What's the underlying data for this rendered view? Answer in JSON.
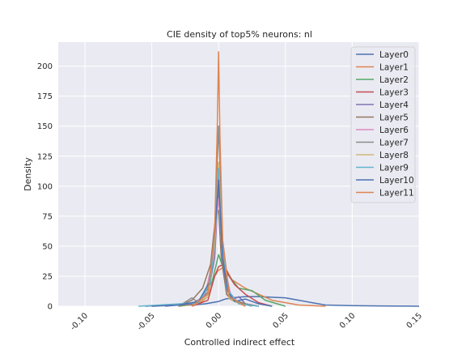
{
  "chart_data": {
    "type": "line",
    "title": "CIE density of top5% neurons: nl",
    "xlabel": "Controlled indirect effect",
    "ylabel": "Density",
    "xlim": [
      -0.12,
      0.15
    ],
    "ylim": [
      0,
      220
    ],
    "xticks": [
      -0.1,
      -0.05,
      0.0,
      0.05,
      0.1,
      0.15
    ],
    "xtick_labels": [
      "-0.10",
      "-0.05",
      "0.00",
      "0.05",
      "0.10",
      "0.15"
    ],
    "yticks": [
      0,
      25,
      50,
      75,
      100,
      125,
      150,
      175,
      200
    ],
    "ytick_labels": [
      "0",
      "25",
      "50",
      "75",
      "100",
      "125",
      "150",
      "175",
      "200"
    ],
    "grid": true,
    "legend_position": "top-right",
    "series": [
      {
        "name": "Layer0",
        "color": "#4c72b0",
        "x": [
          -0.055,
          -0.04,
          -0.02,
          -0.01,
          0.0,
          0.005,
          0.01,
          0.02,
          0.03,
          0.05,
          0.07,
          0.08,
          0.1,
          0.12,
          0.15
        ],
        "y": [
          0,
          1,
          1,
          2,
          4,
          6,
          7,
          8,
          8,
          7,
          3,
          1,
          0.5,
          0.3,
          0
        ]
      },
      {
        "name": "Layer1",
        "color": "#dd8452",
        "x": [
          -0.03,
          -0.015,
          -0.008,
          -0.003,
          0.0,
          0.003,
          0.006,
          0.01,
          0.02,
          0.03,
          0.04,
          0.06,
          0.08
        ],
        "y": [
          0,
          2,
          8,
          25,
          30,
          32,
          30,
          22,
          15,
          10,
          5,
          1,
          0
        ]
      },
      {
        "name": "Layer2",
        "color": "#55a868",
        "x": [
          -0.03,
          -0.015,
          -0.005,
          0.0,
          0.004,
          0.008,
          0.015,
          0.025,
          0.035,
          0.05
        ],
        "y": [
          0,
          3,
          20,
          43,
          30,
          25,
          15,
          13,
          5,
          0
        ]
      },
      {
        "name": "Layer3",
        "color": "#c44e52",
        "x": [
          -0.02,
          -0.008,
          -0.003,
          0.0,
          0.004,
          0.008,
          0.012,
          0.02,
          0.03,
          0.04
        ],
        "y": [
          0,
          5,
          25,
          33,
          35,
          25,
          18,
          10,
          3,
          0
        ]
      },
      {
        "name": "Layer4",
        "color": "#8172b3",
        "x": [
          -0.04,
          -0.02,
          -0.008,
          -0.003,
          0.0,
          0.003,
          0.006,
          0.01,
          0.015,
          0.02,
          0.03
        ],
        "y": [
          0,
          2,
          10,
          40,
          100,
          40,
          10,
          5,
          8,
          2,
          0
        ]
      },
      {
        "name": "Layer5",
        "color": "#937860",
        "x": [
          -0.03,
          -0.02,
          -0.012,
          -0.006,
          -0.002,
          0.0,
          0.002,
          0.006,
          0.012,
          0.02,
          0.03
        ],
        "y": [
          0,
          5,
          15,
          35,
          77,
          80,
          40,
          10,
          5,
          2,
          0
        ]
      },
      {
        "name": "Layer6",
        "color": "#da8bc3",
        "x": [
          -0.02,
          -0.01,
          -0.004,
          0.0,
          0.004,
          0.01,
          0.02
        ],
        "y": [
          0,
          10,
          40,
          90,
          35,
          5,
          0
        ]
      },
      {
        "name": "Layer7",
        "color": "#8c8c8c",
        "x": [
          -0.03,
          -0.02,
          -0.015,
          -0.008,
          -0.003,
          0.0,
          0.003,
          0.008,
          0.015,
          0.025
        ],
        "y": [
          0,
          7,
          3,
          12,
          60,
          150,
          55,
          10,
          3,
          0
        ]
      },
      {
        "name": "Layer8",
        "color": "#ccb974",
        "x": [
          -0.02,
          -0.008,
          -0.003,
          0.0,
          0.003,
          0.008,
          0.02
        ],
        "y": [
          0,
          8,
          50,
          120,
          45,
          6,
          0
        ]
      },
      {
        "name": "Layer9",
        "color": "#64b5cd",
        "x": [
          -0.06,
          -0.015,
          -0.006,
          -0.002,
          0.0,
          0.002,
          0.006,
          0.015,
          0.03
        ],
        "y": [
          0,
          3,
          20,
          70,
          115,
          60,
          15,
          2,
          0
        ]
      },
      {
        "name": "Layer10",
        "color": "#4c72b0",
        "x": [
          -0.05,
          -0.03,
          -0.015,
          -0.007,
          -0.003,
          0.0,
          0.003,
          0.007,
          0.012,
          0.02,
          0.03,
          0.04
        ],
        "y": [
          0,
          1,
          4,
          20,
          60,
          105,
          40,
          12,
          4,
          6,
          2,
          0
        ]
      },
      {
        "name": "Layer11",
        "color": "#dd8452",
        "x": [
          -0.02,
          -0.008,
          -0.003,
          -0.001,
          0.0,
          0.001,
          0.003,
          0.008,
          0.02
        ],
        "y": [
          0,
          10,
          60,
          150,
          212,
          140,
          55,
          8,
          0
        ]
      }
    ]
  }
}
